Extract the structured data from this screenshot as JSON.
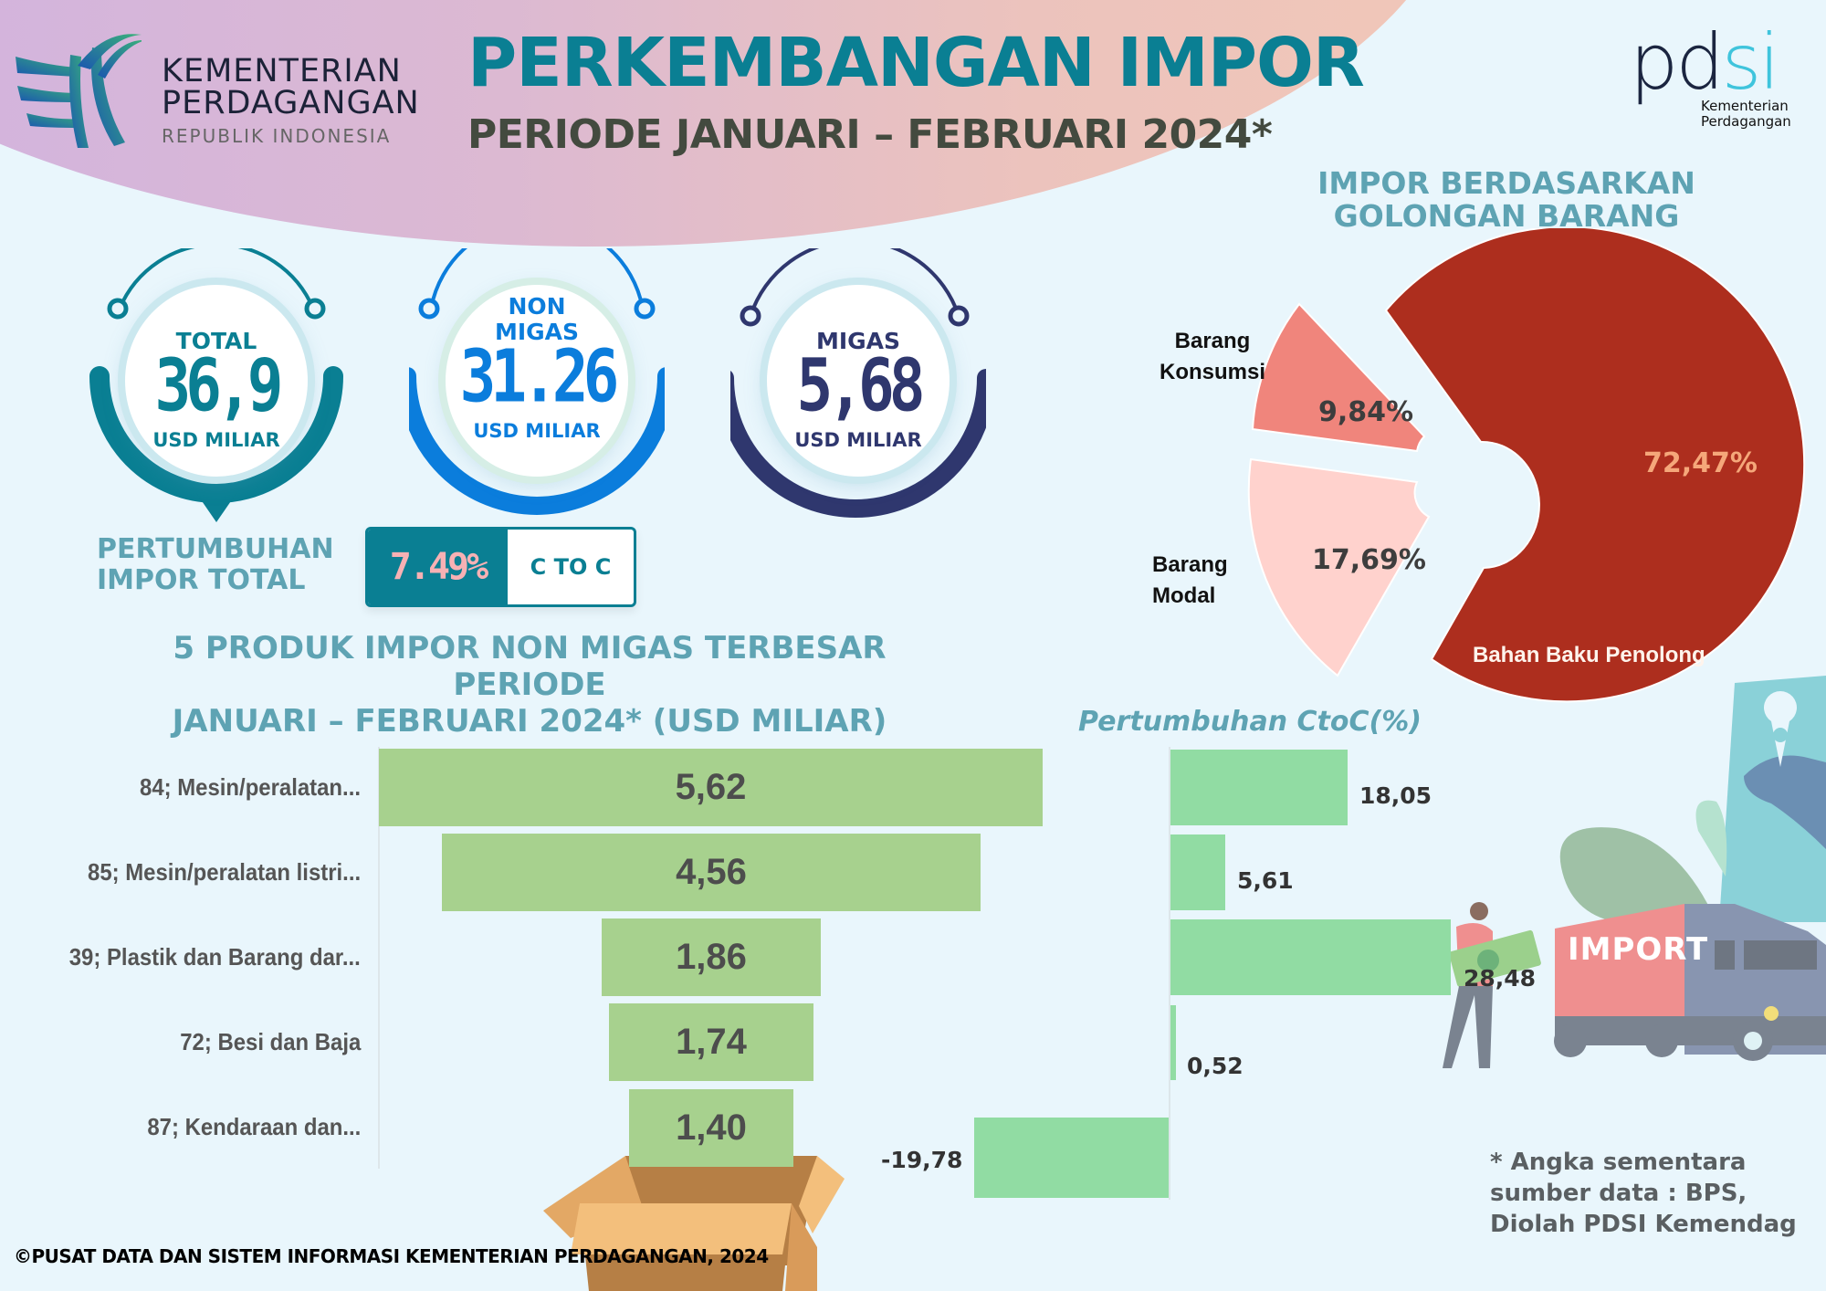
{
  "header": {
    "logo": {
      "line1": "KEMENTERIAN",
      "line2": "PERDAGANGAN",
      "line3": "REPUBLIK INDONESIA",
      "icon": "kemendag-logo-icon"
    },
    "title": "PERKEMBANGAN IMPOR",
    "subtitle": "PERIODE JANUARI – FEBRUARI 2024*",
    "pdsi_logo": {
      "text_dark": "pd",
      "text_light": "si",
      "line1": "Kementerian",
      "line2": "Perdagangan"
    }
  },
  "kpis": [
    {
      "label_lines": [
        "TOTAL"
      ],
      "value": "36,9",
      "unit": "USD MILIAR",
      "color": "#0a7f93"
    },
    {
      "label_lines": [
        "NON",
        "MIGAS"
      ],
      "value": "31.26",
      "unit": "USD MILIAR",
      "color": "#0b7ddc"
    },
    {
      "label_lines": [
        "MIGAS"
      ],
      "value": "5,68",
      "unit": "USD MILIAR",
      "color": "#2f376e"
    }
  ],
  "growth_total": {
    "label_line1": "PERTUMBUHAN",
    "label_line2": "IMPOR TOTAL",
    "value": "7.49%",
    "basis": "C TO C"
  },
  "pie_section": {
    "title_line1": "IMPOR BERDASARKAN",
    "title_line2": "GOLONGAN BARANG"
  },
  "funnel_section": {
    "title_line1": "5 PRODUK IMPOR NON MIGAS TERBESAR  PERIODE",
    "title_line2": "JANUARI – FEBRUARI 2024* (USD MILIAR)"
  },
  "growth_section": {
    "title": "Pertumbuhan CtoC(%)"
  },
  "illustration": {
    "truck_label": "IMPORT"
  },
  "footnote": {
    "line1": "* Angka sementara",
    "line2": "sumber data : BPS,",
    "line3": "Diolah PDSI Kemendag"
  },
  "copyright": "©PUSAT DATA DAN SISTEM INFORMASI KEMENTERIAN PERDAGANGAN, 2024",
  "chart_data": [
    {
      "type": "pie",
      "title": "IMPOR BERDASARKAN GOLONGAN BARANG",
      "categories": [
        "Bahan Baku Penolong",
        "Barang Modal",
        "Barang Konsumsi"
      ],
      "values": [
        72.47,
        17.69,
        9.84
      ],
      "labels": [
        "72,47%",
        "17,69%",
        "9,84%"
      ],
      "colors": [
        "#ad2e1e",
        "#ffd2cd",
        "#f0857c"
      ]
    },
    {
      "type": "bar",
      "orientation": "horizontal-funnel",
      "title": "5 PRODUK IMPOR NON MIGAS TERBESAR PERIODE JANUARI – FEBRUARI 2024* (USD MILIAR)",
      "categories": [
        "84; Mesin/peralatan...",
        "85; Mesin/peralatan listri...",
        "39; Plastik dan Barang dar...",
        "72; Besi dan Baja",
        "87; Kendaraan dan..."
      ],
      "values": [
        5.62,
        4.56,
        1.86,
        1.74,
        1.4
      ],
      "labels": [
        "5,62",
        "4,56",
        "1,86",
        "1,74",
        "1,40"
      ],
      "xlabel": "",
      "ylabel": "",
      "unit": "USD Miliar",
      "color": "#a7d18e"
    },
    {
      "type": "bar",
      "orientation": "horizontal",
      "title": "Pertumbuhan CtoC(%)",
      "categories": [
        "84; Mesin/peralatan...",
        "85; Mesin/peralatan listri...",
        "39; Plastik dan Barang dar...",
        "72; Besi dan Baja",
        "87; Kendaraan dan..."
      ],
      "values": [
        18.05,
        5.61,
        28.48,
        0.52,
        -19.78
      ],
      "labels": [
        "18,05",
        "5,61",
        "28,48",
        "0,52",
        "-19,78"
      ],
      "xlabel": "",
      "ylabel": "",
      "unit": "%",
      "color": "#91dca3"
    }
  ]
}
